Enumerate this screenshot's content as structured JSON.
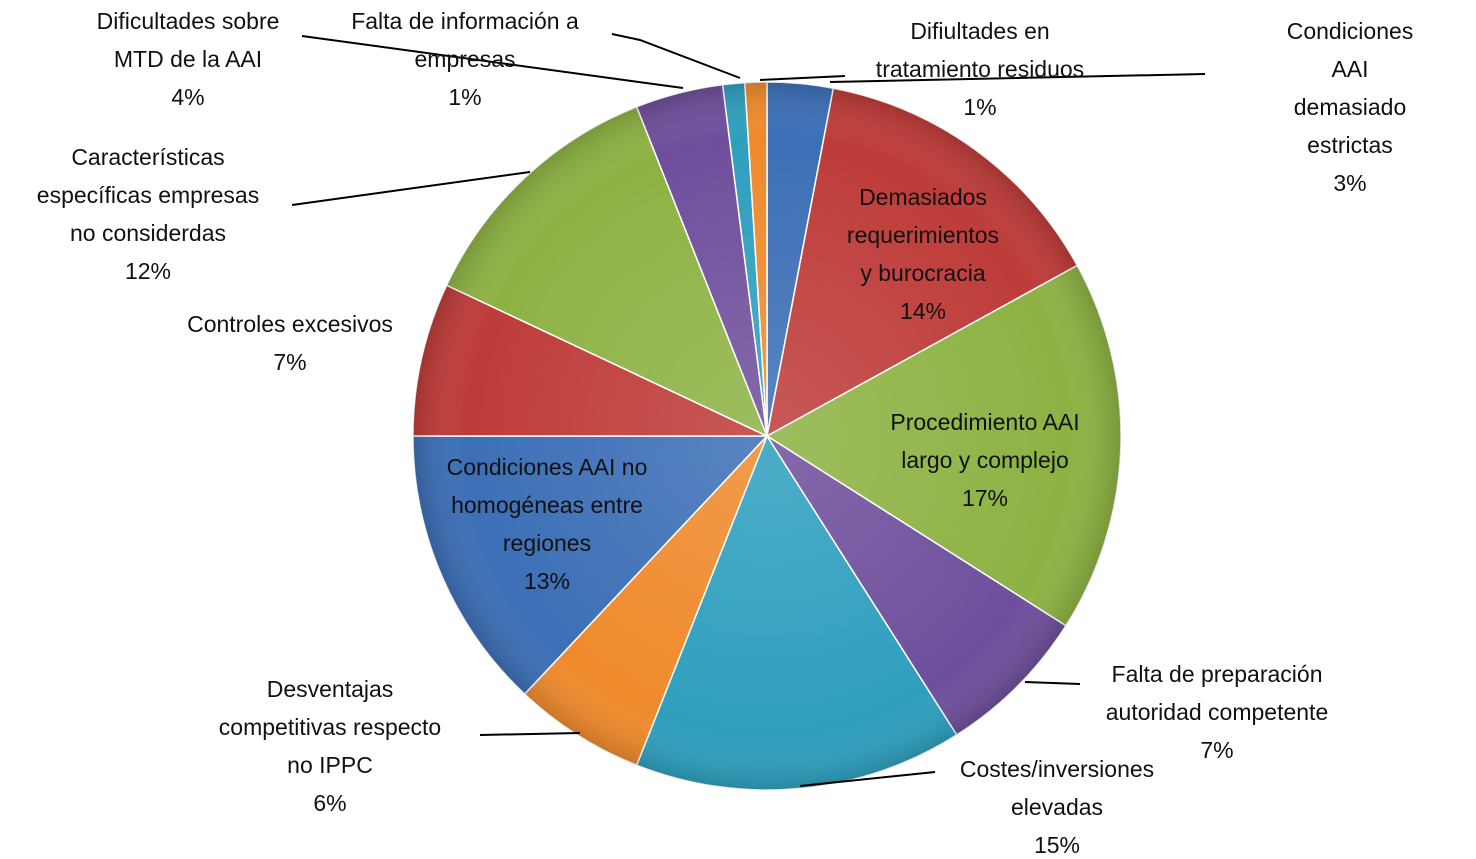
{
  "chart_data": {
    "type": "pie",
    "categories": [
      "Condiciones AAI\ndemasiado estrictas",
      "Demasiados\nrequerimientos\ny burocracia",
      "Procedimiento AAI\nlargo y complejo",
      "Falta de preparación\nautoridad competente",
      "Costes/inversiones\nelevadas",
      "Desventajas\ncompetitivas respecto\nno IPPC",
      "Condiciones AAI no\nhomogéneas entre\nregiones",
      "Controles excesivos",
      "Características\nespecíficas empresas\nno considerdas",
      "Dificultades sobre\nMTD de la AAI",
      "Falta de información a\nempresas",
      "Difiultades en\ntratamiento residuos"
    ],
    "values": [
      3,
      14,
      17,
      7,
      15,
      6,
      13,
      7,
      12,
      4,
      1,
      1
    ],
    "value_labels": [
      "3%",
      "14%",
      "17%",
      "7%",
      "15%",
      "6%",
      "13%",
      "7%",
      "12%",
      "4%",
      "1%",
      "1%"
    ],
    "colors": [
      "#3c6fb6",
      "#be3c39",
      "#8db243",
      "#6f4f9c",
      "#2f9fbe",
      "#ef8a2c",
      "#3c6fb6",
      "#be3c39",
      "#8db243",
      "#6f4f9c",
      "#2f9fbe",
      "#ef8a2c"
    ]
  }
}
